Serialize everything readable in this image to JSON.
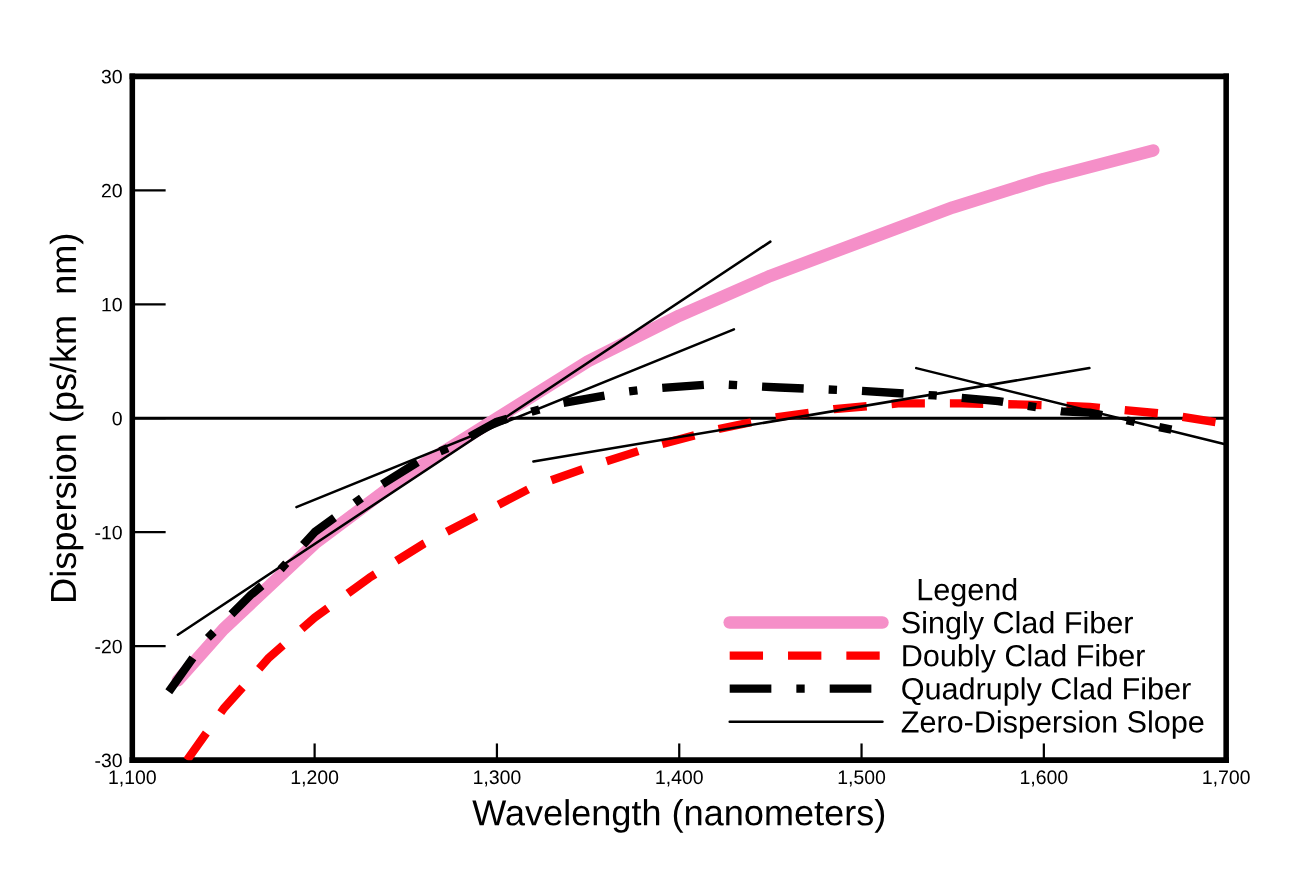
{
  "chart_data": {
    "type": "line",
    "xlabel": "Wavelength (nanometers)",
    "ylabel": "Dispersion (ps/km  nm)",
    "legend_title": "Legend",
    "xlim": [
      1100,
      1700
    ],
    "ylim": [
      -30,
      30
    ],
    "xticks": [
      {
        "value": 1100,
        "label": "1,100"
      },
      {
        "value": 1200,
        "label": "1,200"
      },
      {
        "value": 1300,
        "label": "1,300"
      },
      {
        "value": 1400,
        "label": "1,400"
      },
      {
        "value": 1500,
        "label": "1,500"
      },
      {
        "value": 1600,
        "label": "1,600"
      },
      {
        "value": 1700,
        "label": "1,700"
      }
    ],
    "yticks": [
      -30,
      -20,
      -10,
      0,
      10,
      20,
      30
    ],
    "grid": false,
    "legend": "bottom right",
    "ref_lines": [
      {
        "axis": "y",
        "value": 0,
        "color": "#000000",
        "line_style": "solid"
      }
    ],
    "series": [
      {
        "name": "Singly Clad Fiber",
        "color": "#f58fc8",
        "line_style": "solid",
        "x": [
          1125,
          1150,
          1200,
          1250,
          1300,
          1350,
          1400,
          1450,
          1500,
          1550,
          1600,
          1660
        ],
        "values": [
          -23,
          -18.5,
          -11,
          -5,
          0,
          5,
          9,
          12.5,
          15.5,
          18.5,
          21,
          23.5
        ]
      },
      {
        "name": "Doubly Clad Fiber",
        "color": "#ff0000",
        "line_style": "dashed",
        "x": [
          1130,
          1150,
          1175,
          1200,
          1230,
          1260,
          1290,
          1320,
          1350,
          1385,
          1420,
          1450,
          1485,
          1520,
          1555,
          1590,
          1625,
          1665,
          1700
        ],
        "values": [
          -30,
          -25.5,
          -21,
          -17.5,
          -14,
          -11,
          -8.5,
          -6,
          -4.3,
          -2.5,
          -1,
          0,
          0.8,
          1.3,
          1.3,
          1.2,
          1,
          0.4,
          -0.5
        ]
      },
      {
        "name": "Quadruply Clad Fiber",
        "color": "#000000",
        "line_style": "dashdot",
        "x": [
          1120,
          1140,
          1165,
          1180,
          1200,
          1230,
          1260,
          1275,
          1300,
          1335,
          1370,
          1385,
          1420,
          1455,
          1500,
          1540,
          1575,
          1610,
          1625,
          1670
        ],
        "values": [
          -24,
          -19.5,
          -15.5,
          -13.5,
          -10,
          -6.5,
          -3.5,
          -2.5,
          -0.3,
          1.3,
          2.3,
          2.6,
          3,
          2.7,
          2.4,
          2,
          1.5,
          0.6,
          0.5,
          -1
        ]
      },
      {
        "name": "Zero-Dispersion Slope",
        "color": "#000000",
        "line_style": "solid",
        "x": [
          1125,
          1450,
          null,
          1190,
          1430,
          null,
          1320,
          1625,
          null,
          1530,
          1700
        ],
        "values": [
          -19,
          15.5,
          null,
          -7.8,
          7.8,
          null,
          -3.8,
          4.4,
          null,
          4.4,
          -2.3
        ]
      }
    ]
  }
}
